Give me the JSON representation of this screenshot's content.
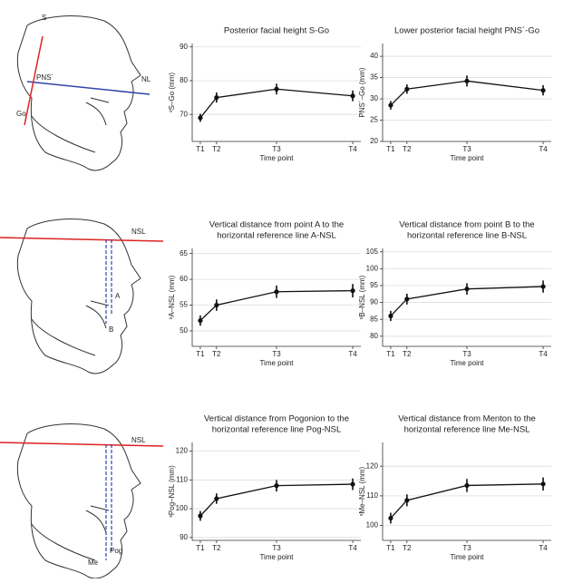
{
  "chart_data": [
    {
      "type": "line",
      "title": [
        "Posterior facial height S-Go"
      ],
      "xlabel": "Time point",
      "ylabel": "ˢS–Go (mm)",
      "x": [
        0,
        1,
        4.7,
        9.4
      ],
      "xlim": [
        -0.5,
        9.9
      ],
      "xticks": [
        {
          "value": 0,
          "label": "T1"
        },
        {
          "value": 1,
          "label": "T2"
        },
        {
          "value": 4.7,
          "label": "T3"
        },
        {
          "value": 9.4,
          "label": "T4"
        }
      ],
      "values": [
        69,
        75,
        77.5,
        75.5
      ],
      "errors": [
        1.2,
        1.5,
        1.6,
        1.6
      ],
      "ylim": [
        62,
        91
      ],
      "yticks": [
        70,
        80,
        90
      ],
      "color": "#111",
      "grid": true
    },
    {
      "type": "line",
      "title": [
        "Lower posterior facial height PNS´-Go"
      ],
      "xlabel": "Time point",
      "ylabel": "PNS´–Go (mm)",
      "x": [
        0,
        1,
        4.7,
        9.4
      ],
      "xlim": [
        -0.5,
        9.9
      ],
      "xticks": [
        {
          "value": 0,
          "label": "T1"
        },
        {
          "value": 1,
          "label": "T2"
        },
        {
          "value": 4.7,
          "label": "T3"
        },
        {
          "value": 9.4,
          "label": "T4"
        }
      ],
      "values": [
        28.5,
        32.3,
        34.2,
        32
      ],
      "errors": [
        1,
        1.1,
        1.3,
        1.2
      ],
      "ylim": [
        20,
        43
      ],
      "yticks": [
        20,
        25,
        30,
        35,
        40
      ],
      "color": "#111",
      "grid": true
    },
    {
      "type": "line",
      "title": [
        "Vertical distance from point A to the",
        "horizontal reference line A-NSL"
      ],
      "xlabel": "Time point",
      "ylabel": "ˢA–NSL (mm)",
      "x": [
        0,
        1,
        4.7,
        9.4
      ],
      "xlim": [
        -0.5,
        9.9
      ],
      "xticks": [
        {
          "value": 0,
          "label": "T1"
        },
        {
          "value": 1,
          "label": "T2"
        },
        {
          "value": 4.7,
          "label": "T3"
        },
        {
          "value": 9.4,
          "label": "T4"
        }
      ],
      "values": [
        52,
        55,
        57.6,
        57.8
      ],
      "errors": [
        1,
        1.1,
        1.2,
        1.3
      ],
      "ylim": [
        47,
        66
      ],
      "yticks": [
        50,
        55,
        60,
        65
      ],
      "color": "#111",
      "grid": true
    },
    {
      "type": "line",
      "title": [
        "Vertical distance from point B to the",
        "horizontal reference line B-NSL"
      ],
      "xlabel": "Time point",
      "ylabel": "ˢB–NSL (mm)",
      "x": [
        0,
        1,
        4.7,
        9.4
      ],
      "xlim": [
        -0.5,
        9.9
      ],
      "xticks": [
        {
          "value": 0,
          "label": "T1"
        },
        {
          "value": 1,
          "label": "T2"
        },
        {
          "value": 4.7,
          "label": "T3"
        },
        {
          "value": 9.4,
          "label": "T4"
        }
      ],
      "values": [
        86,
        91,
        94,
        94.7
      ],
      "errors": [
        1.5,
        1.6,
        1.7,
        1.8
      ],
      "ylim": [
        77,
        106
      ],
      "yticks": [
        80,
        85,
        90,
        95,
        100,
        105
      ],
      "color": "#111",
      "grid": true
    },
    {
      "type": "line",
      "title": [
        "Vertical distance from Pogonion to the",
        "horizontal reference line Pog-NSL"
      ],
      "xlabel": "Time point",
      "ylabel": "ˢPog–NSL (mm)",
      "x": [
        0,
        1,
        4.7,
        9.4
      ],
      "xlim": [
        -0.5,
        9.9
      ],
      "xticks": [
        {
          "value": 0,
          "label": "T1"
        },
        {
          "value": 1,
          "label": "T2"
        },
        {
          "value": 4.7,
          "label": "T3"
        },
        {
          "value": 9.4,
          "label": "T4"
        }
      ],
      "values": [
        97.5,
        103.5,
        108,
        108.5
      ],
      "errors": [
        1.7,
        1.8,
        2,
        2
      ],
      "ylim": [
        89,
        123
      ],
      "yticks": [
        90,
        100,
        110,
        120
      ],
      "color": "#111",
      "grid": true
    },
    {
      "type": "line",
      "title": [
        "Vertical distance from Menton to the",
        "horizontal reference line Me-NSL"
      ],
      "xlabel": "Time point",
      "ylabel": "ˢMe–NSL (mm)",
      "x": [
        0,
        1,
        4.7,
        9.4
      ],
      "xlim": [
        -0.5,
        9.9
      ],
      "xticks": [
        {
          "value": 0,
          "label": "T1"
        },
        {
          "value": 1,
          "label": "T2"
        },
        {
          "value": 4.7,
          "label": "T3"
        },
        {
          "value": 9.4,
          "label": "T4"
        }
      ],
      "values": [
        102.5,
        108.5,
        113.5,
        114
      ],
      "errors": [
        1.8,
        2,
        2.2,
        2.2
      ],
      "ylim": [
        95,
        128
      ],
      "yticks": [
        100,
        110,
        120
      ],
      "color": "#111",
      "grid": true
    }
  ],
  "diagrams": [
    {
      "labels": [
        "S",
        "PNS´",
        "NL",
        "Go"
      ]
    },
    {
      "labels": [
        "NSL",
        "A",
        "B"
      ]
    },
    {
      "labels": [
        "NSL",
        "Pog",
        "Me"
      ]
    }
  ]
}
